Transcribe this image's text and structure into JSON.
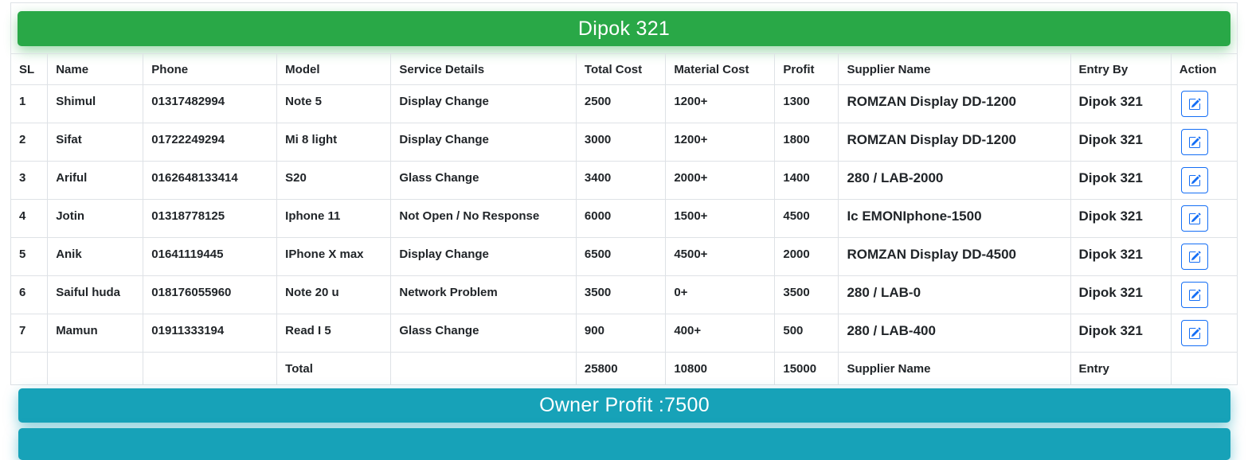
{
  "header": {
    "title": "Dipok 321"
  },
  "footer": {
    "owner_profit_label": "Owner Profit :7500"
  },
  "colors": {
    "banner_green": "#29a847",
    "banner_teal": "#17a2b8",
    "button_blue": "#146ef5",
    "border_grey": "#dee2e6"
  },
  "icons": {
    "action_icon": "pencil-square-icon"
  },
  "table": {
    "columns": [
      "SL",
      "Name",
      "Phone",
      "Model",
      "Service Details",
      "Total Cost",
      "Material Cost",
      "Profit",
      "Supplier Name",
      "Entry By",
      "Action"
    ],
    "rows": [
      {
        "sl": "1",
        "name": "Shimul",
        "phone": "01317482994",
        "model": "Note 5",
        "service": "Display Change",
        "total_cost": "2500",
        "material_cost": "1200+",
        "profit": "1300",
        "supplier": "ROMZAN Display DD-1200",
        "entry_by": "Dipok 321"
      },
      {
        "sl": "2",
        "name": "Sifat",
        "phone": "01722249294",
        "model": "Mi 8 light",
        "service": "Display Change",
        "total_cost": "3000",
        "material_cost": "1200+",
        "profit": "1800",
        "supplier": "ROMZAN Display DD-1200",
        "entry_by": "Dipok 321"
      },
      {
        "sl": "3",
        "name": "Ariful",
        "phone": "0162648133414",
        "model": "S20",
        "service": "Glass Change",
        "total_cost": "3400",
        "material_cost": "2000+",
        "profit": "1400",
        "supplier": "280 / LAB-2000",
        "entry_by": "Dipok 321"
      },
      {
        "sl": "4",
        "name": "Jotin",
        "phone": "01318778125",
        "model": "Iphone 11",
        "service": "Not Open / No Response",
        "total_cost": "6000",
        "material_cost": "1500+",
        "profit": "4500",
        "supplier": "Ic EMONIphone-1500",
        "entry_by": "Dipok 321"
      },
      {
        "sl": "5",
        "name": "Anik",
        "phone": "01641119445",
        "model": "IPhone X max",
        "service": "Display Change",
        "total_cost": "6500",
        "material_cost": "4500+",
        "profit": "2000",
        "supplier": "ROMZAN Display DD-4500",
        "entry_by": "Dipok 321"
      },
      {
        "sl": "6",
        "name": "Saiful huda",
        "phone": "018176055960",
        "model": "Note 20 u",
        "service": "Network Problem",
        "total_cost": "3500",
        "material_cost": "0+",
        "profit": "3500",
        "supplier": "280 / LAB-0",
        "entry_by": "Dipok 321"
      },
      {
        "sl": "7",
        "name": "Mamun",
        "phone": "01911333194",
        "model": "Read I 5",
        "service": "Glass Change",
        "total_cost": "900",
        "material_cost": "400+",
        "profit": "500",
        "supplier": "280 / LAB-400",
        "entry_by": "Dipok 321"
      }
    ],
    "total_row": {
      "model_label": "Total",
      "total_cost": "25800",
      "material_cost": "10800",
      "profit": "15000",
      "supplier_label": "Supplier Name",
      "entry_label": "Entry"
    }
  }
}
